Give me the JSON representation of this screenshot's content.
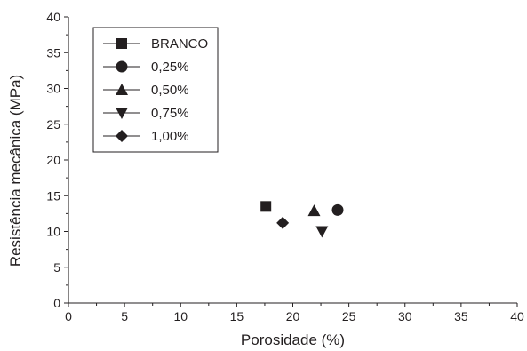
{
  "chart_data": {
    "type": "scatter",
    "title": "",
    "xlabel": "Porosidade (%)",
    "ylabel": "Resistência mecânica (MPa)",
    "xlim": [
      0,
      40
    ],
    "ylim": [
      0,
      40
    ],
    "xticks": [
      0,
      5,
      10,
      15,
      20,
      25,
      30,
      35,
      40
    ],
    "yticks": [
      0,
      5,
      10,
      15,
      20,
      25,
      30,
      35,
      40
    ],
    "grid": false,
    "legend_position": "top-left",
    "series": [
      {
        "name": "BRANCO",
        "marker": "square",
        "x": [
          17.6
        ],
        "y": [
          13.5
        ]
      },
      {
        "name": "0,25%",
        "marker": "circle",
        "x": [
          24.0
        ],
        "y": [
          13.0
        ]
      },
      {
        "name": "0,50%",
        "marker": "triangle-up",
        "x": [
          21.9
        ],
        "y": [
          12.9
        ]
      },
      {
        "name": "0,75%",
        "marker": "triangle-down",
        "x": [
          22.6
        ],
        "y": [
          10.0
        ]
      },
      {
        "name": "1,00%",
        "marker": "diamond",
        "x": [
          19.1
        ],
        "y": [
          11.2
        ]
      }
    ],
    "colors": {
      "ink": "#231f20",
      "background": "#ffffff"
    }
  }
}
